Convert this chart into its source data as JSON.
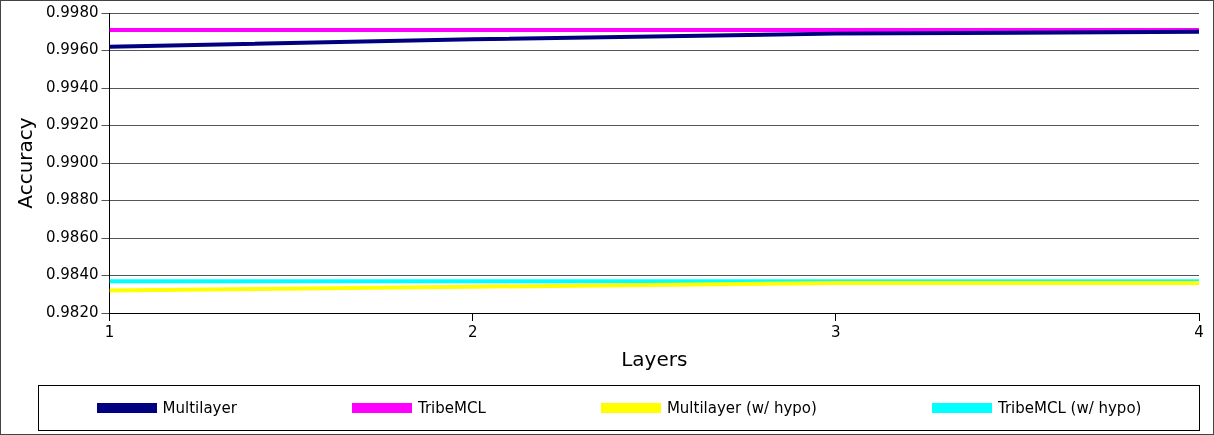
{
  "chart_data": {
    "type": "line",
    "xlabel": "Layers",
    "ylabel": "Accuracy",
    "x": [
      1,
      2,
      3,
      4
    ],
    "series": [
      {
        "name": "Multilayer",
        "color": "#000080",
        "values": [
          0.9962,
          0.9966,
          0.9969,
          0.997
        ]
      },
      {
        "name": "TribeMCL",
        "color": "#ff00ff",
        "values": [
          0.9971,
          0.9971,
          0.9971,
          0.9971
        ]
      },
      {
        "name": "Multilayer (w/ hypo)",
        "color": "#ffff00",
        "values": [
          0.9832,
          0.9834,
          0.9836,
          0.9836
        ]
      },
      {
        "name": "TribeMCL (w/ hypo)",
        "color": "#00ffff",
        "values": [
          0.9837,
          0.9837,
          0.9837,
          0.9837
        ]
      }
    ],
    "xlim": [
      1,
      4
    ],
    "xticks": [
      1,
      2,
      3,
      4
    ],
    "ylim": [
      0.982,
      0.998
    ],
    "yticks": [
      {
        "value": 0.982,
        "label": "0.9820"
      },
      {
        "value": 0.984,
        "label": "0.9840"
      },
      {
        "value": 0.986,
        "label": "0.9860"
      },
      {
        "value": 0.988,
        "label": "0.9880"
      },
      {
        "value": 0.99,
        "label": "0.9900"
      },
      {
        "value": 0.992,
        "label": "0.9920"
      },
      {
        "value": 0.994,
        "label": "0.9940"
      },
      {
        "value": 0.996,
        "label": "0.9960"
      },
      {
        "value": 0.998,
        "label": "0.9980"
      }
    ],
    "grid": "y",
    "legend": "bottom",
    "marker": "none",
    "line_style": "solid"
  }
}
